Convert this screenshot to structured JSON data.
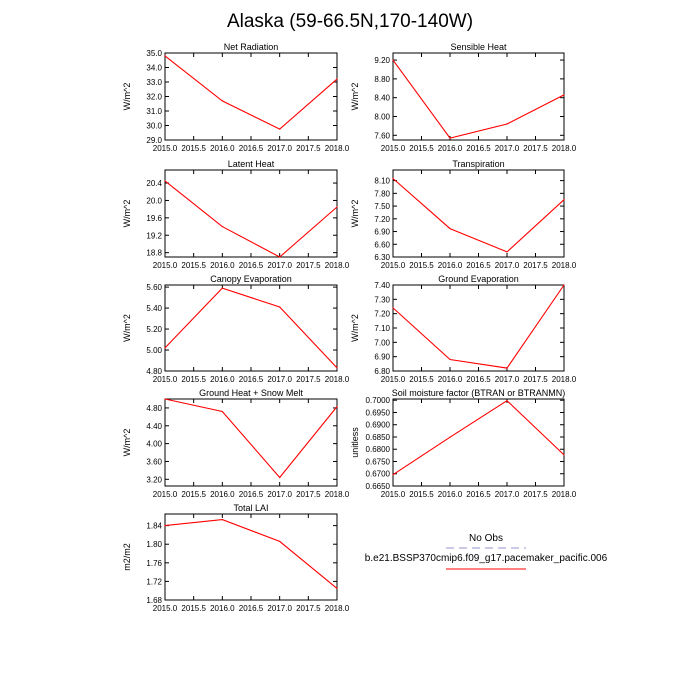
{
  "title": "Alaska (59-66.5N,170-140W)",
  "colors": {
    "model_line": "#ff0000",
    "obs_line": "#b8b8e0",
    "axis": "#000000"
  },
  "legend": {
    "obs_label": "No Obs",
    "model_label": "b.e21.BSSP370cmip6.f09_g17.pacemaker_pacific.006"
  },
  "chart_data": [
    {
      "type": "line",
      "title": "Net Radiation",
      "ylabel": "W/m^2",
      "x": [
        2015,
        2016,
        2017,
        2018
      ],
      "values": [
        34.8,
        31.7,
        29.75,
        33.2
      ],
      "xlim": [
        2015,
        2018
      ],
      "ylim": [
        29.0,
        35.0
      ],
      "xticks": [
        "2015.0",
        "2015.5",
        "2016.0",
        "2016.5",
        "2017.0",
        "2017.5",
        "2018.0"
      ],
      "yticks": [
        "29.0",
        "30.0",
        "31.0",
        "32.0",
        "33.0",
        "34.0",
        "35.0"
      ]
    },
    {
      "type": "line",
      "title": "Sensible Heat",
      "ylabel": "W/m^2",
      "x": [
        2015,
        2016,
        2017,
        2018
      ],
      "values": [
        9.2,
        7.54,
        7.84,
        8.46
      ],
      "xlim": [
        2015,
        2018
      ],
      "ylim": [
        7.5,
        9.35
      ],
      "xticks": [
        "2015.0",
        "2015.5",
        "2016.0",
        "2016.5",
        "2017.0",
        "2017.5",
        "2018.0"
      ],
      "yticks": [
        "7.60",
        "8.00",
        "8.40",
        "8.80",
        "9.20"
      ]
    },
    {
      "type": "line",
      "title": "Latent Heat",
      "ylabel": "W/m^2",
      "x": [
        2015,
        2016,
        2017,
        2018
      ],
      "values": [
        20.45,
        19.4,
        18.7,
        19.85
      ],
      "xlim": [
        2015,
        2018
      ],
      "ylim": [
        18.7,
        20.7
      ],
      "xticks": [
        "2015.0",
        "2015.5",
        "2016.0",
        "2016.5",
        "2017.0",
        "2017.5",
        "2018.0"
      ],
      "yticks": [
        "18.8",
        "19.2",
        "19.6",
        "20.0",
        "20.4"
      ]
    },
    {
      "type": "line",
      "title": "Transpiration",
      "ylabel": "W/m^2",
      "x": [
        2015,
        2016,
        2017,
        2018
      ],
      "values": [
        8.15,
        6.97,
        6.42,
        7.65
      ],
      "xlim": [
        2015,
        2018
      ],
      "ylim": [
        6.3,
        8.35
      ],
      "xticks": [
        "2015.0",
        "2015.5",
        "2016.0",
        "2016.5",
        "2017.0",
        "2017.5",
        "2018.0"
      ],
      "yticks": [
        "6.30",
        "6.60",
        "6.90",
        "7.20",
        "7.50",
        "7.80",
        "8.10"
      ]
    },
    {
      "type": "line",
      "title": "Canopy Evaporation",
      "ylabel": "W/m^2",
      "x": [
        2015,
        2016,
        2017,
        2018
      ],
      "values": [
        5.02,
        5.59,
        5.41,
        4.83
      ],
      "xlim": [
        2015,
        2018
      ],
      "ylim": [
        4.8,
        5.62
      ],
      "xticks": [
        "2015.0",
        "2015.5",
        "2016.0",
        "2016.5",
        "2017.0",
        "2017.5",
        "2018.0"
      ],
      "yticks": [
        "4.80",
        "5.00",
        "5.20",
        "5.40",
        "5.60"
      ]
    },
    {
      "type": "line",
      "title": "Ground Evaporation",
      "ylabel": "W/m^2",
      "x": [
        2015,
        2016,
        2017,
        2018
      ],
      "values": [
        7.24,
        6.88,
        6.82,
        7.4
      ],
      "xlim": [
        2015,
        2018
      ],
      "ylim": [
        6.8,
        7.4
      ],
      "xticks": [
        "2015.0",
        "2015.5",
        "2016.0",
        "2016.5",
        "2017.0",
        "2017.5",
        "2018.0"
      ],
      "yticks": [
        "6.80",
        "6.90",
        "7.00",
        "7.10",
        "7.20",
        "7.30",
        "7.40"
      ]
    },
    {
      "type": "line",
      "title": "Ground Heat + Snow Melt",
      "ylabel": "W/m^2",
      "x": [
        2015,
        2016,
        2017,
        2018
      ],
      "values": [
        5.0,
        4.72,
        3.24,
        4.83
      ],
      "xlim": [
        2015,
        2018
      ],
      "ylim": [
        3.05,
        5.0
      ],
      "xticks": [
        "2015.0",
        "2015.5",
        "2016.0",
        "2016.5",
        "2017.0",
        "2017.5",
        "2018.0"
      ],
      "yticks": [
        "3.20",
        "3.60",
        "4.00",
        "4.40",
        "4.80"
      ]
    },
    {
      "type": "line",
      "title": "Soil moisture factor (BTRAN or BTRANMN)",
      "ylabel": "unitless",
      "x": [
        2015,
        2016,
        2017,
        2018
      ],
      "values": [
        0.6696,
        0.6849,
        0.6998,
        0.6777
      ],
      "xlim": [
        2015,
        2018
      ],
      "ylim": [
        0.665,
        0.7005
      ],
      "xticks": [
        "2015.0",
        "2015.5",
        "2016.0",
        "2016.5",
        "2017.0",
        "2017.5",
        "2018.0"
      ],
      "yticks": [
        "0.6650",
        "0.6700",
        "0.6750",
        "0.6800",
        "0.6850",
        "0.6900",
        "0.6950",
        "0.7000"
      ]
    },
    {
      "type": "line",
      "title": "Total LAI",
      "ylabel": "m2/m2",
      "x": [
        2015,
        2016,
        2017,
        2018
      ],
      "values": [
        1.84,
        1.853,
        1.806,
        1.705
      ],
      "xlim": [
        2015,
        2018
      ],
      "ylim": [
        1.68,
        1.865
      ],
      "xticks": [
        "2015.0",
        "2015.5",
        "2016.0",
        "2016.5",
        "2017.0",
        "2017.5",
        "2018.0"
      ],
      "yticks": [
        "1.68",
        "1.72",
        "1.76",
        "1.80",
        "1.84"
      ]
    }
  ]
}
